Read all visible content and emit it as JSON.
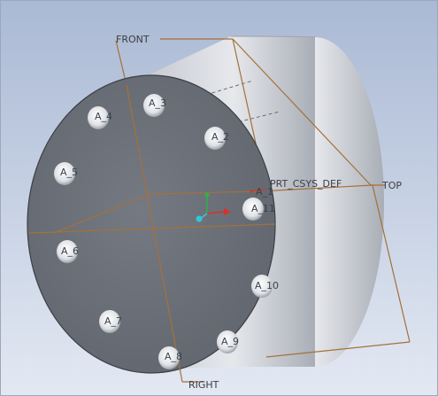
{
  "viewport": {
    "background_top": "#aab9d4",
    "background_bottom": "#e3e9f3",
    "datum_color": "#a5703a"
  },
  "datum_planes": {
    "front": "FRONT",
    "top": "TOP",
    "right": "RIGHT"
  },
  "csys": {
    "name": "PRT_CSYS_DEF"
  },
  "axes": {
    "a1": "A_1",
    "a2": "A_2",
    "a3": "A_3",
    "a4": "A_4",
    "a5": "A_5",
    "a6": "A_6",
    "a7": "A_7",
    "a8": "A_8",
    "a9": "A_9",
    "a10": "A_10",
    "a11": "A_11"
  },
  "part": {
    "face_color": "#6c7179",
    "body_light": "#e2e5ea",
    "body_shade": "#aeb3bb",
    "hole_color": "#e9ebee"
  }
}
